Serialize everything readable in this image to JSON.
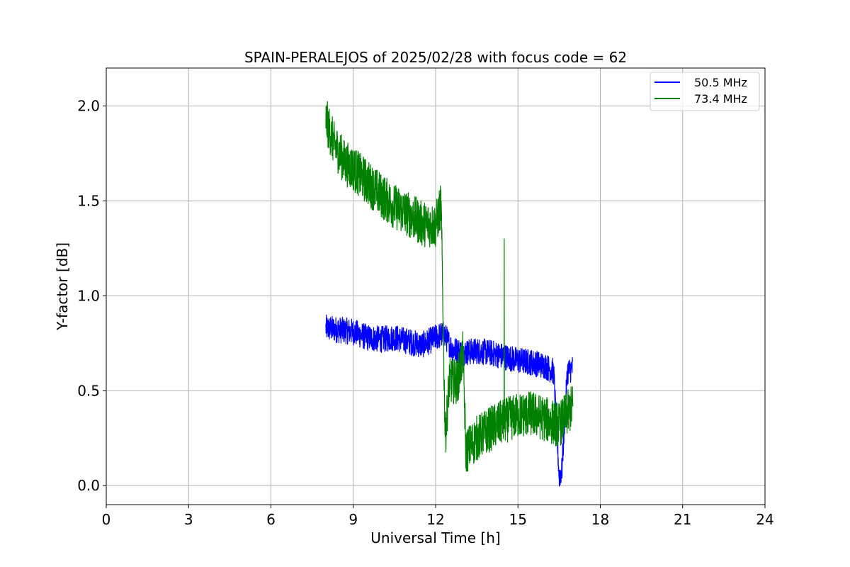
{
  "chart_data": {
    "type": "line",
    "title": "SPAIN-PERALEJOS of 2025/02/28 with focus code = 62",
    "xlabel": "Universal Time [h]",
    "ylabel": "Y-factor [dB]",
    "xlim": [
      0,
      24
    ],
    "ylim": [
      -0.1,
      2.2
    ],
    "xticks": [
      0,
      3,
      6,
      9,
      12,
      15,
      18,
      21,
      24
    ],
    "yticks": [
      0.0,
      0.5,
      1.0,
      1.5,
      2.0
    ],
    "xtick_labels": [
      "0",
      "3",
      "6",
      "9",
      "12",
      "15",
      "18",
      "21",
      "24"
    ],
    "ytick_labels": [
      "0.0",
      "0.5",
      "1.0",
      "1.5",
      "2.0"
    ],
    "grid": true,
    "legend_position": "top-right",
    "series": [
      {
        "name": "50.5 MHz",
        "color": "#0000ff",
        "x": [
          8.0,
          8.5,
          9.0,
          9.5,
          10.0,
          10.5,
          11.0,
          11.5,
          12.0,
          12.3,
          12.6,
          13.0,
          13.5,
          14.0,
          14.5,
          15.0,
          15.5,
          16.0,
          16.3,
          16.5,
          16.6,
          16.8,
          17.0
        ],
        "values": [
          0.83,
          0.82,
          0.81,
          0.78,
          0.77,
          0.78,
          0.76,
          0.74,
          0.78,
          0.8,
          0.72,
          0.7,
          0.71,
          0.7,
          0.68,
          0.66,
          0.65,
          0.63,
          0.6,
          0.05,
          0.08,
          0.6,
          0.62
        ],
        "band_halfwidth": 0.07
      },
      {
        "name": "73.4 MHz",
        "color": "#008000",
        "x": [
          8.0,
          8.3,
          8.7,
          9.0,
          9.5,
          10.0,
          10.5,
          11.0,
          11.5,
          12.0,
          12.2,
          12.35,
          12.5,
          12.8,
          13.0,
          13.1,
          13.5,
          14.0,
          14.5,
          15.0,
          15.5,
          16.0,
          16.5,
          17.0
        ],
        "values": [
          1.93,
          1.8,
          1.7,
          1.67,
          1.6,
          1.53,
          1.47,
          1.43,
          1.38,
          1.37,
          1.48,
          0.25,
          0.55,
          0.55,
          0.7,
          0.18,
          0.25,
          0.3,
          0.34,
          0.37,
          0.38,
          0.35,
          0.32,
          0.42
        ],
        "band_halfwidth": 0.12,
        "spike_x": 14.5,
        "spike_value": 1.3
      }
    ]
  }
}
